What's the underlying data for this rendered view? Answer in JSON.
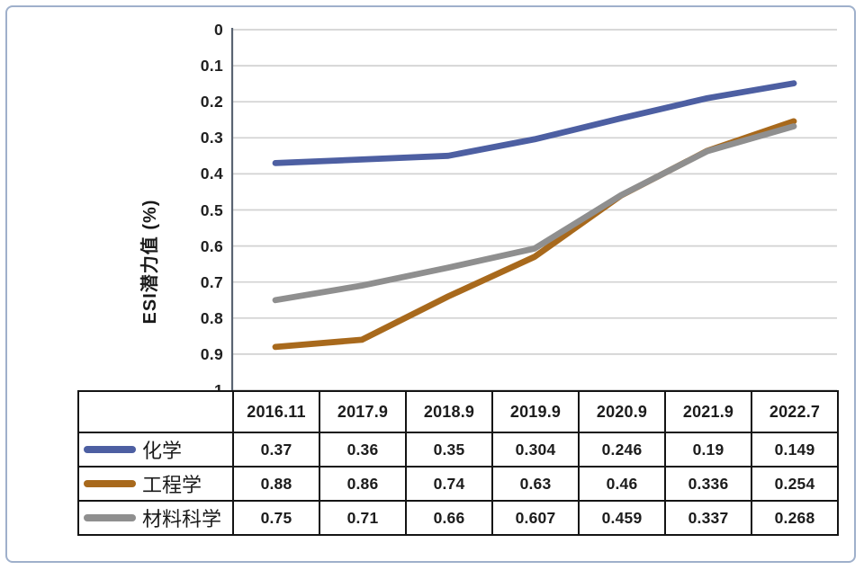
{
  "chart_data": {
    "type": "line",
    "title": "",
    "xlabel": "",
    "ylabel": "ESI潜力值 (%)",
    "categories": [
      "2016.11",
      "2017.9",
      "2018.9",
      "2019.9",
      "2020.9",
      "2021.9",
      "2022.7"
    ],
    "series": [
      {
        "name": "化学",
        "color": "#4d5fa2",
        "values": [
          0.37,
          0.36,
          0.35,
          0.304,
          0.246,
          0.19,
          0.149
        ]
      },
      {
        "name": "工程学",
        "color": "#a8691c",
        "values": [
          0.88,
          0.86,
          0.74,
          0.63,
          0.46,
          0.336,
          0.254
        ]
      },
      {
        "name": "材料科学",
        "color": "#8f8f8f",
        "values": [
          0.75,
          0.71,
          0.66,
          0.607,
          0.459,
          0.337,
          0.268
        ]
      }
    ],
    "ylim": [
      0,
      1
    ],
    "y_axis_reversed": true,
    "yticks": [
      0,
      0.1,
      0.2,
      0.3,
      0.4,
      0.5,
      0.6,
      0.7,
      0.8,
      0.9,
      1
    ],
    "ytick_labels": [
      "0",
      "0.1",
      "0.2",
      "0.3",
      "0.4",
      "0.5",
      "0.6",
      "0.7",
      "0.8",
      "0.9",
      "1"
    ],
    "grid": true,
    "legend_position": "table-left-column",
    "colors": {
      "gridline": "#d2d2d2",
      "axis": "#5a6472",
      "frame_border": "#9fb0cb",
      "table_border": "#141414",
      "text": "#1c1c1c"
    }
  }
}
